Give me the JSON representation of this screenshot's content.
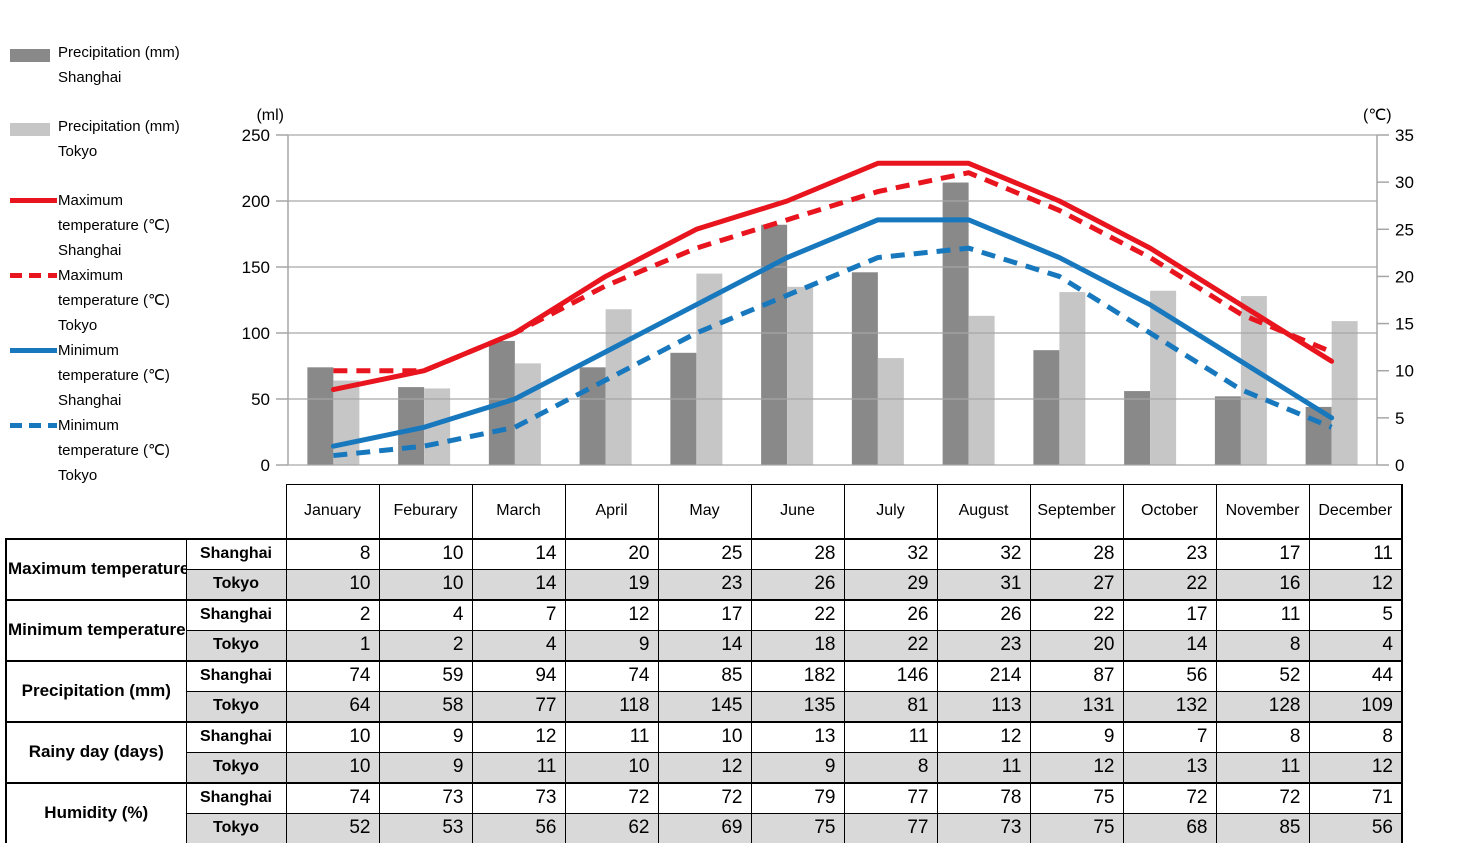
{
  "page": {
    "background": "#ffffff"
  },
  "legend": {
    "items": [
      {
        "key": "precipitation-shanghai",
        "swatch": "bar",
        "dash": false,
        "color": "#898989",
        "lines": [
          "Precipitation (mm)",
          "Shanghai"
        ]
      },
      {
        "key": "precipitation-tokyo",
        "swatch": "bar",
        "dash": false,
        "color": "#c6c6c6",
        "lines": [
          "Precipitation (mm)",
          "Tokyo"
        ]
      },
      {
        "key": "max-temperature-shanghai",
        "swatch": "line",
        "dash": false,
        "color": "#e8141e",
        "lines": [
          "Maximum",
          "temperature (℃)",
          "Shanghai"
        ]
      },
      {
        "key": "max-temperature-tokyo",
        "swatch": "line",
        "dash": true,
        "color": "#e8141e",
        "lines": [
          "Maximum",
          "temperature (℃)",
          "Tokyo"
        ]
      },
      {
        "key": "min-temperature-shanghai",
        "swatch": "line",
        "dash": false,
        "color": "#1878be",
        "lines": [
          "Minimum",
          "temperature (℃)",
          "Shanghai"
        ]
      },
      {
        "key": "min-temperature-tokyo",
        "swatch": "line",
        "dash": true,
        "color": "#1878be",
        "lines": [
          "Minimum",
          "temperature (℃)",
          "Tokyo"
        ]
      }
    ]
  },
  "chart_data": {
    "type": "bar+line combo",
    "title": "",
    "grid": true,
    "legend_position": "left",
    "categories": [
      "January",
      "Feburary",
      "March",
      "April",
      "May",
      "June",
      "July",
      "August",
      "September",
      "October",
      "November",
      "December"
    ],
    "left_axis": {
      "title": "(ml)",
      "min": 0,
      "max": 250,
      "step": 50,
      "tick_labels": [
        "0",
        "50",
        "100",
        "150",
        "200",
        "250"
      ]
    },
    "right_axis": {
      "title": "(℃)",
      "min": 0,
      "max": 35,
      "step": 5,
      "tick_labels": [
        "0",
        "5",
        "10",
        "15",
        "20",
        "25",
        "30",
        "35"
      ]
    },
    "bar_series": [
      {
        "key": "precipitation-shanghai",
        "name": "Precipitation (mm) Shanghai",
        "color": "#898989",
        "values": [
          74,
          59,
          94,
          74,
          85,
          182,
          146,
          214,
          87,
          56,
          52,
          44
        ]
      },
      {
        "key": "precipitation-tokyo",
        "name": "Precipitation (mm) Tokyo",
        "color": "#c6c6c6",
        "values": [
          64,
          58,
          77,
          118,
          145,
          135,
          81,
          113,
          131,
          132,
          128,
          109
        ]
      }
    ],
    "line_series": [
      {
        "key": "max-temperature-shanghai",
        "name": "Maximum temperature (℃) Shanghai",
        "color": "#e8141e",
        "dash": false,
        "values": [
          8,
          10,
          14,
          20,
          25,
          28,
          32,
          32,
          28,
          23,
          17,
          11
        ]
      },
      {
        "key": "max-temperature-tokyo",
        "name": "Maximum temperature (℃) Tokyo",
        "color": "#e8141e",
        "dash": true,
        "values": [
          10,
          10,
          14,
          19,
          23,
          26,
          29,
          31,
          27,
          22,
          16,
          12
        ]
      },
      {
        "key": "min-temperature-shanghai",
        "name": "Minimum temperature (℃) Shanghai",
        "color": "#1878be",
        "dash": false,
        "values": [
          2,
          4,
          7,
          12,
          17,
          22,
          26,
          26,
          22,
          17,
          11,
          5
        ]
      },
      {
        "key": "min-temperature-tokyo",
        "name": "Minimum temperature (℃) Tokyo",
        "color": "#1878be",
        "dash": true,
        "values": [
          1,
          2,
          4,
          9,
          14,
          18,
          22,
          23,
          20,
          14,
          8,
          4
        ]
      }
    ],
    "colors": {
      "gridline": "#a6a6a6",
      "axis": "#a6a6a6",
      "bar_shanghai": "#898989",
      "bar_tokyo": "#c6c6c6",
      "red": "#e8141e",
      "blue": "#1878be"
    }
  },
  "table": {
    "months": [
      "January",
      "Feburary",
      "March",
      "April",
      "May",
      "June",
      "July",
      "August",
      "September",
      "October",
      "November",
      "December"
    ],
    "row_shade_color": "#d9d9d9",
    "groups": [
      {
        "label": "Maximum temperature (℃)",
        "rows": [
          {
            "city": "Shanghai",
            "values": [
              8,
              10,
              14,
              20,
              25,
              28,
              32,
              32,
              28,
              23,
              17,
              11
            ]
          },
          {
            "city": "Tokyo",
            "values": [
              10,
              10,
              14,
              19,
              23,
              26,
              29,
              31,
              27,
              22,
              16,
              12
            ]
          }
        ]
      },
      {
        "label": "Minimum temperature (℃)",
        "rows": [
          {
            "city": "Shanghai",
            "values": [
              2,
              4,
              7,
              12,
              17,
              22,
              26,
              26,
              22,
              17,
              11,
              5
            ]
          },
          {
            "city": "Tokyo",
            "values": [
              1,
              2,
              4,
              9,
              14,
              18,
              22,
              23,
              20,
              14,
              8,
              4
            ]
          }
        ]
      },
      {
        "label": "Precipitation (mm)",
        "rows": [
          {
            "city": "Shanghai",
            "values": [
              74,
              59,
              94,
              74,
              85,
              182,
              146,
              214,
              87,
              56,
              52,
              44
            ]
          },
          {
            "city": "Tokyo",
            "values": [
              64,
              58,
              77,
              118,
              145,
              135,
              81,
              113,
              131,
              132,
              128,
              109
            ]
          }
        ]
      },
      {
        "label": "Rainy day (days)",
        "rows": [
          {
            "city": "Shanghai",
            "values": [
              10,
              9,
              12,
              11,
              10,
              13,
              11,
              12,
              9,
              7,
              8,
              8
            ]
          },
          {
            "city": "Tokyo",
            "values": [
              10,
              9,
              11,
              10,
              12,
              9,
              8,
              11,
              12,
              13,
              11,
              12
            ]
          }
        ]
      },
      {
        "label": "Humidity (%)",
        "rows": [
          {
            "city": "Shanghai",
            "values": [
              74,
              73,
              73,
              72,
              72,
              79,
              77,
              78,
              75,
              72,
              72,
              71
            ]
          },
          {
            "city": "Tokyo",
            "values": [
              52,
              53,
              56,
              62,
              69,
              75,
              77,
              73,
              75,
              68,
              85,
              56
            ]
          }
        ]
      }
    ]
  }
}
